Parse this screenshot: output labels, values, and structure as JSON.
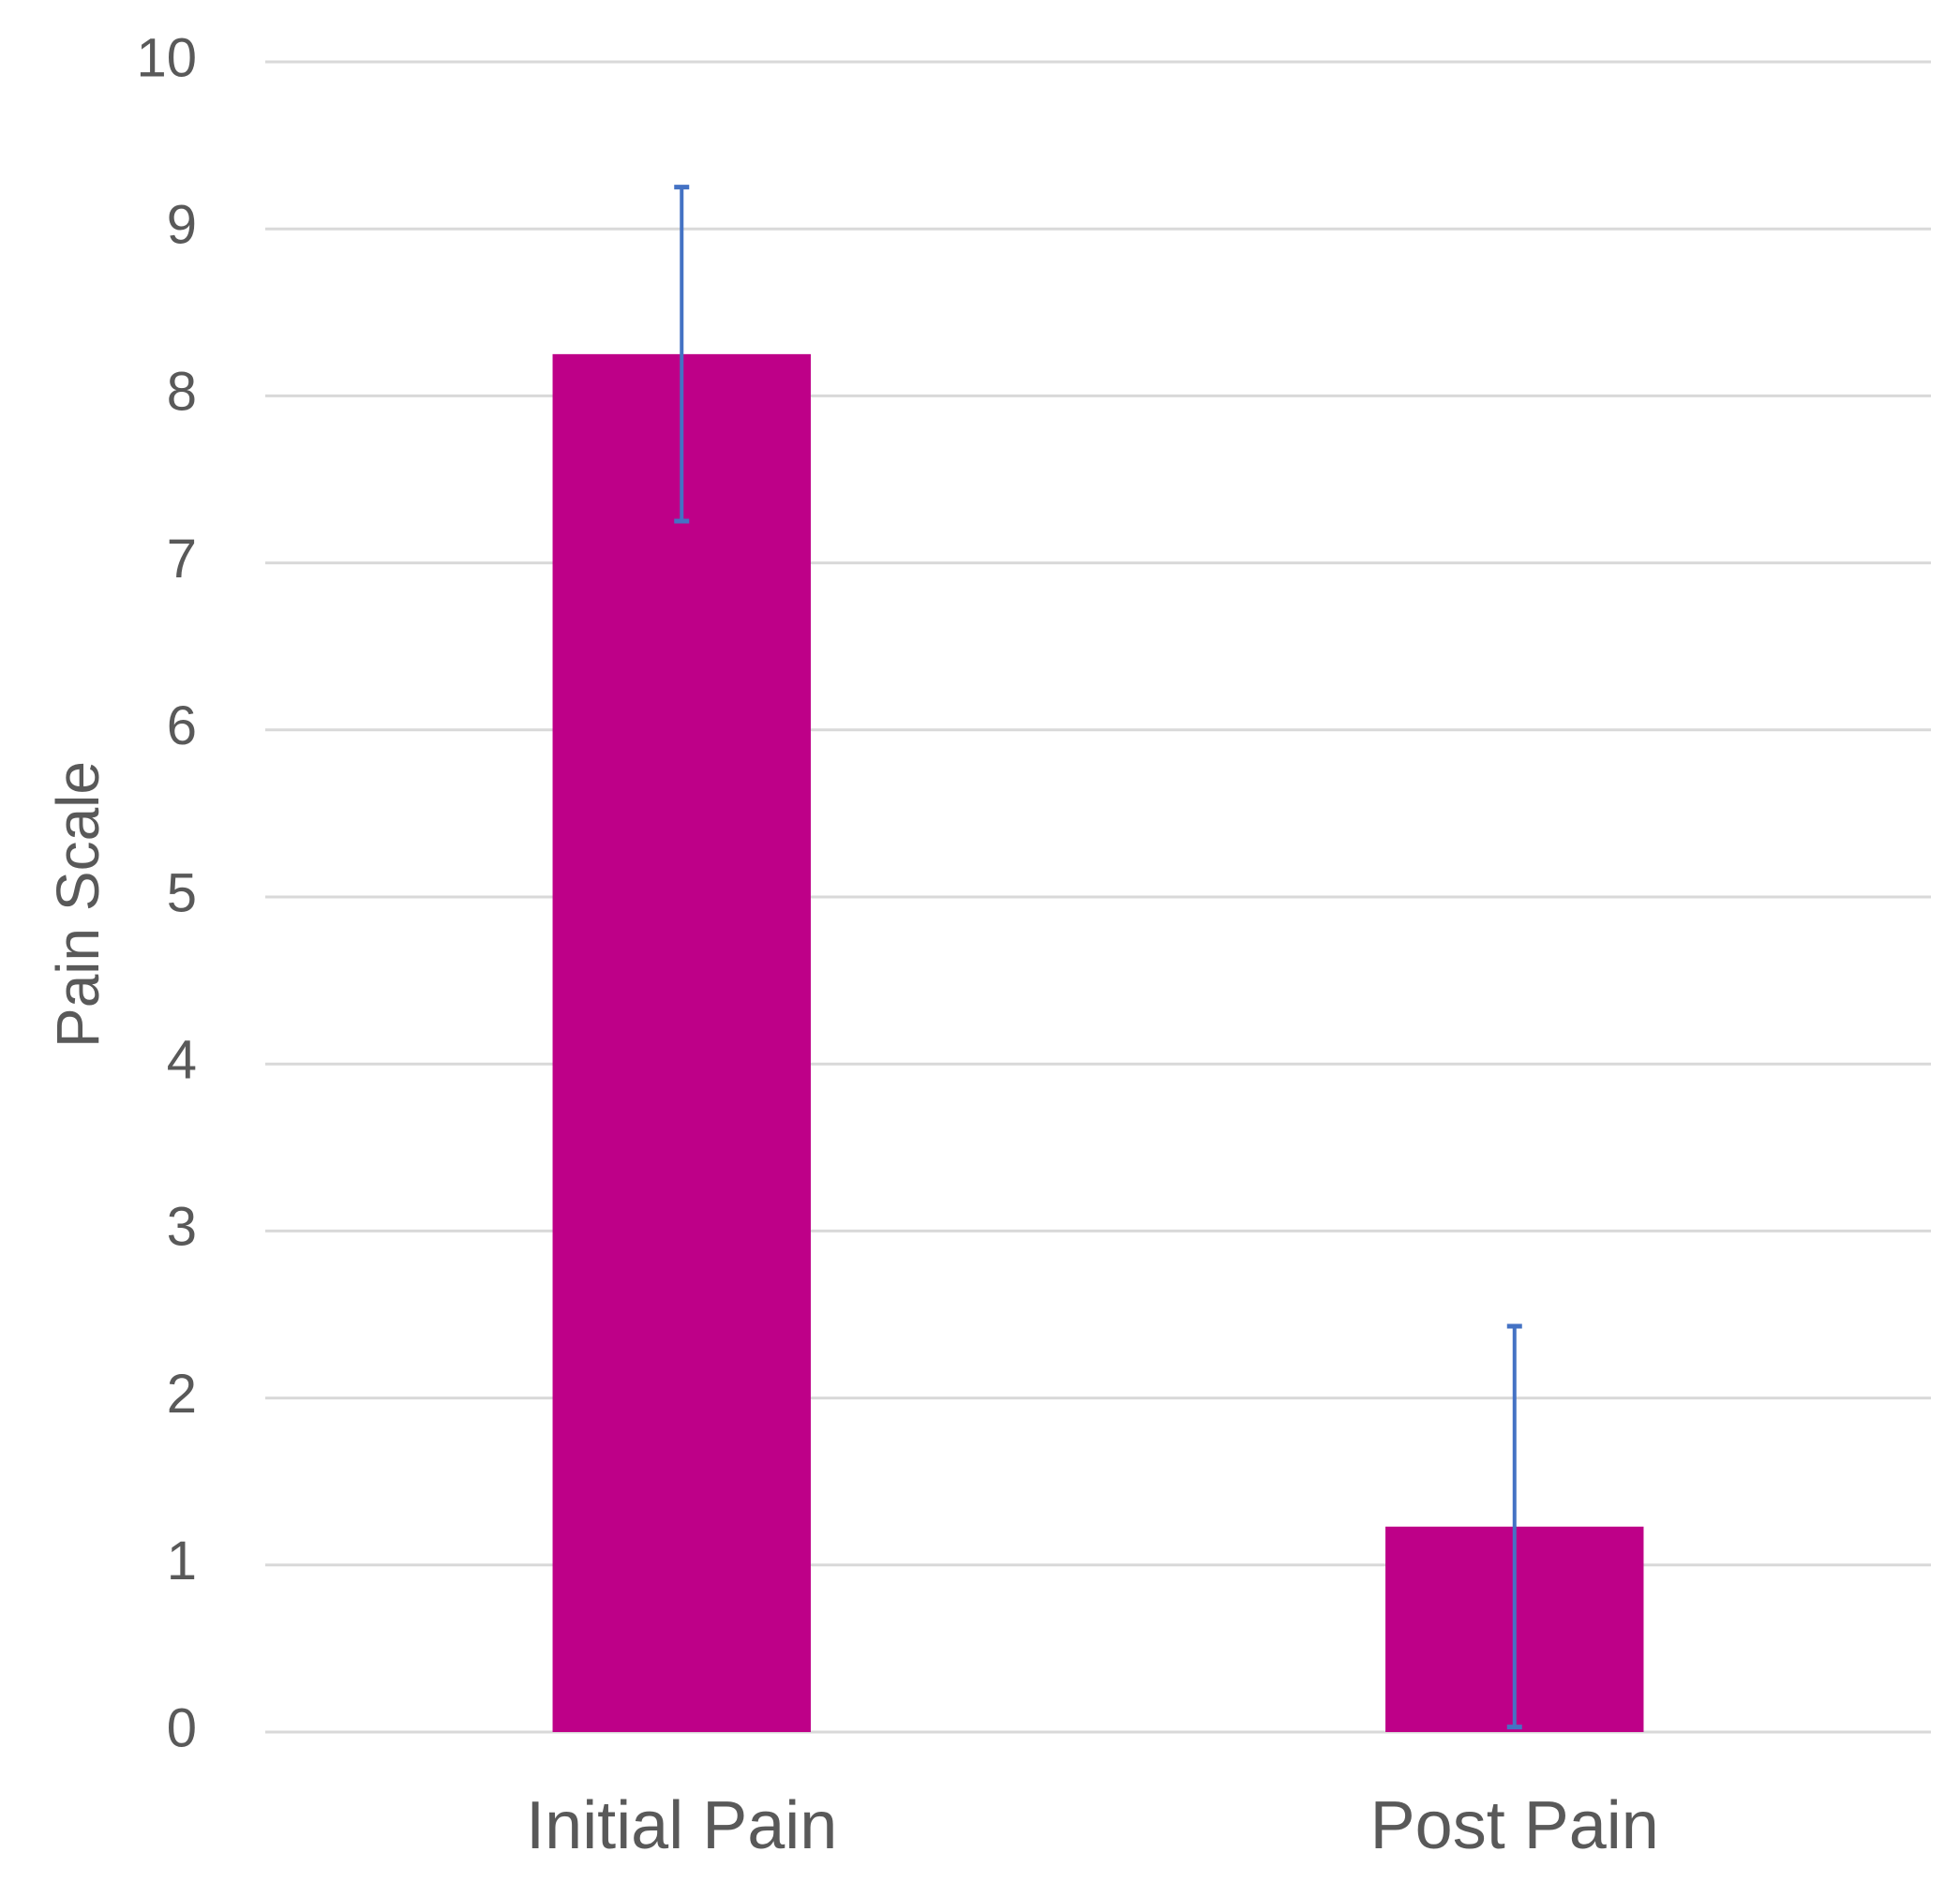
{
  "chart_data": {
    "type": "bar",
    "title": "",
    "xlabel": "",
    "ylabel": "Pain Scale",
    "categories": [
      "Initial Pain",
      "Post Pain"
    ],
    "series": [
      {
        "values": [
          8.25,
          1.23
        ],
        "error_upper": [
          9.25,
          2.43
        ],
        "error_lower": [
          7.25,
          0.03
        ]
      }
    ],
    "ylim": [
      0,
      10
    ],
    "yticks": [
      "0",
      "1",
      "2",
      "3",
      "4",
      "5",
      "6",
      "7",
      "8",
      "9",
      "10"
    ],
    "grid": true,
    "legend": "none",
    "colors": {
      "bar": "#BE0088",
      "error_bar": "#4472C4",
      "gridline": "#D9D9D9",
      "text": "#595959"
    }
  }
}
